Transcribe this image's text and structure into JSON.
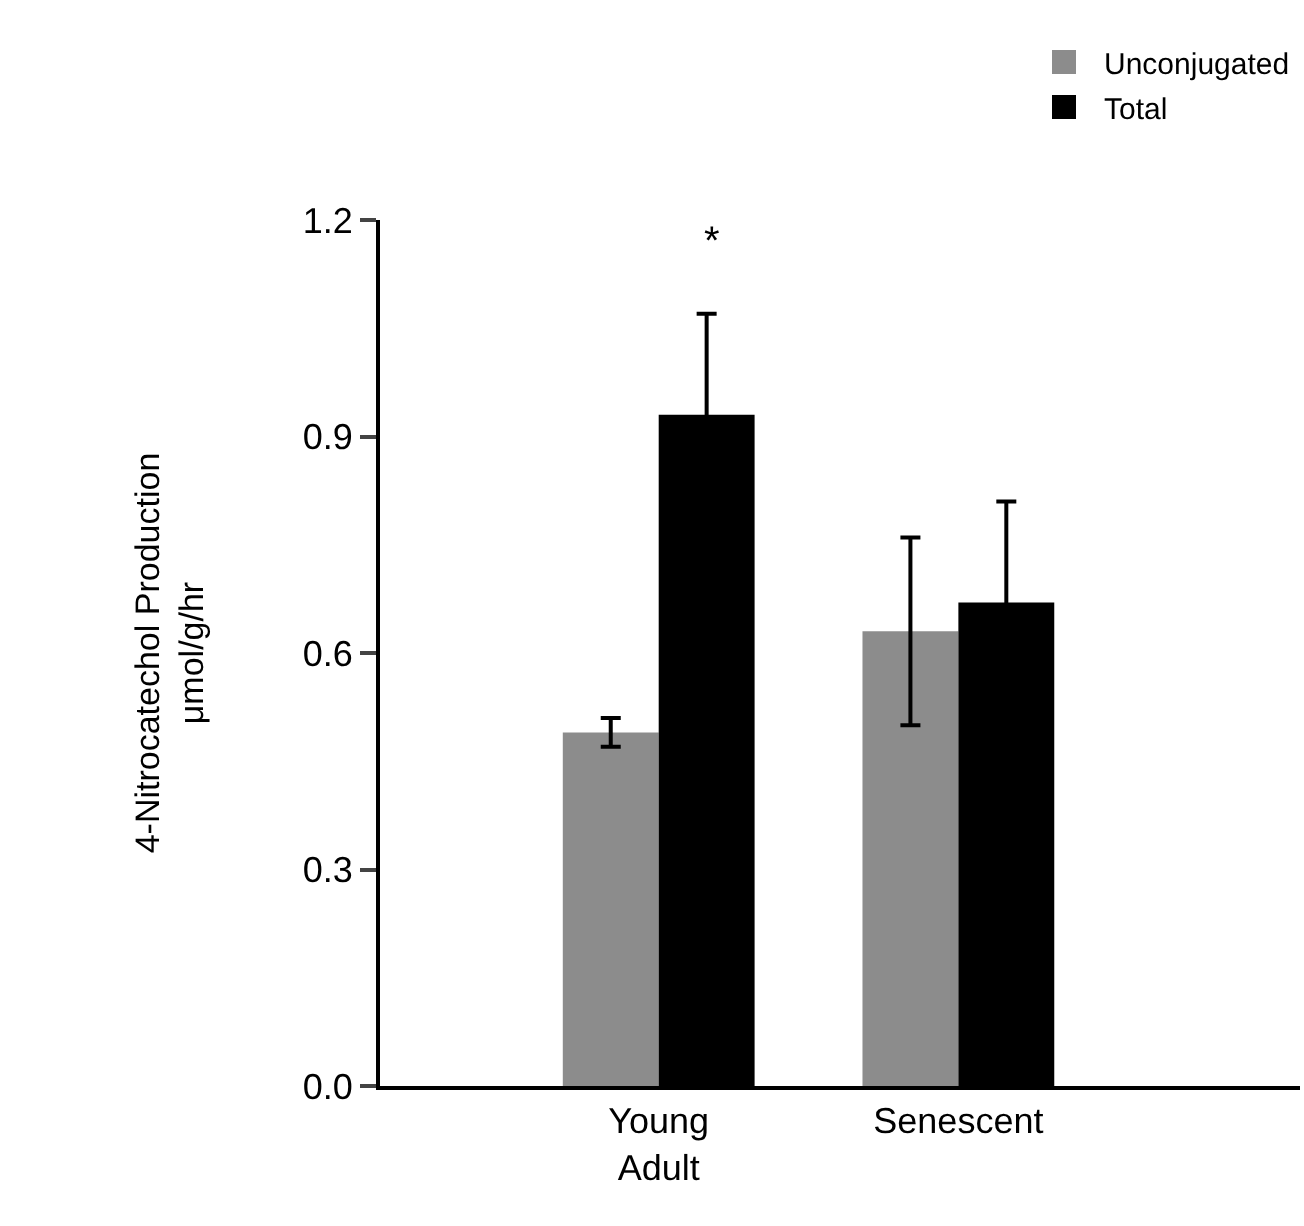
{
  "chart_data": {
    "type": "bar",
    "ylabel": "4-Nitrocatechol Production\nμmol/g/hr",
    "categories": [
      "Young\nAdult",
      "Senescent"
    ],
    "series": [
      {
        "name": "Unconjugated",
        "color": "#8c8c8c",
        "values": [
          0.49,
          0.63
        ],
        "errors": [
          0.02,
          0.13
        ]
      },
      {
        "name": "Total",
        "color": "#000000",
        "values": [
          0.93,
          0.67
        ],
        "errors": [
          0.14,
          0.14
        ]
      }
    ],
    "annotations": [
      "*"
    ],
    "ylim": [
      0,
      1.2
    ],
    "yticks": [
      {
        "value": 0,
        "label": "0.0"
      },
      {
        "value": 0.3,
        "label": "0.3"
      },
      {
        "value": 0.6,
        "label": "0.6"
      },
      {
        "value": 0.9,
        "label": "0.9"
      },
      {
        "value": 1.2,
        "label": "1.2"
      }
    ],
    "legend": "top right"
  }
}
